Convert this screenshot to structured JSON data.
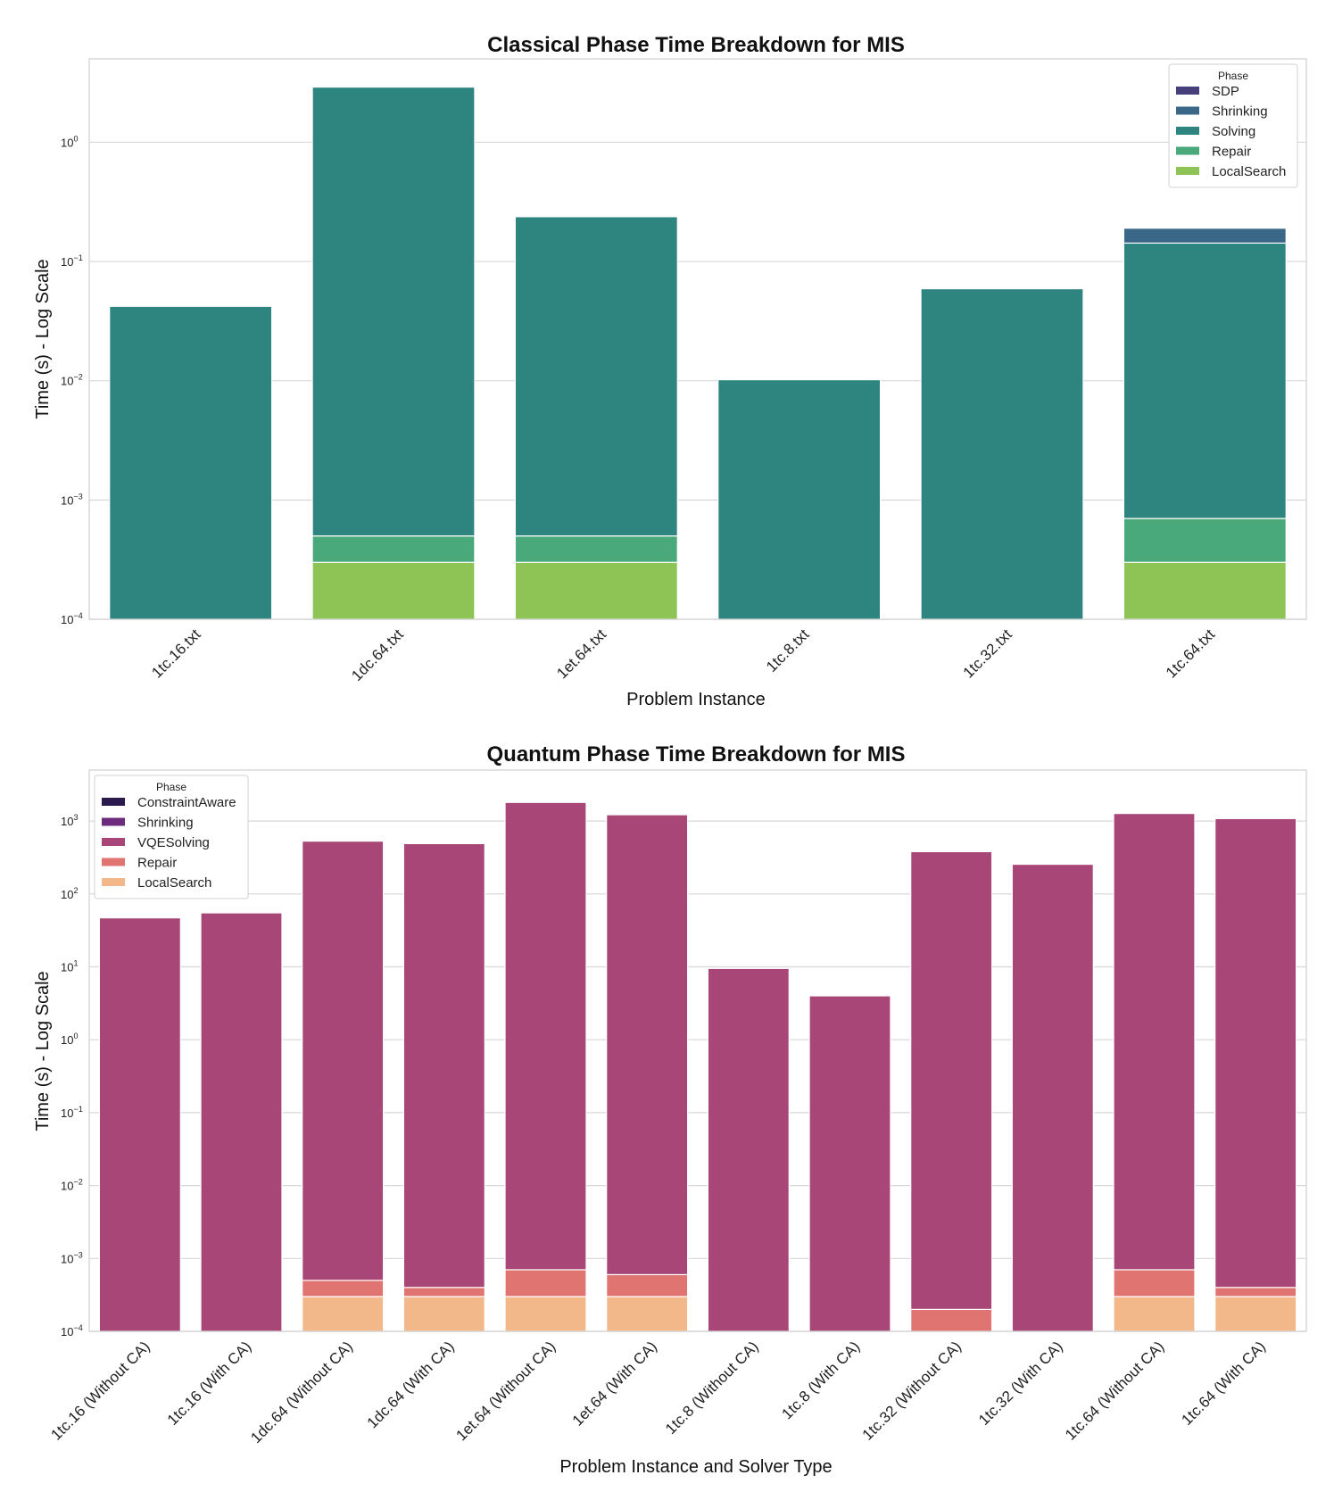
{
  "chart_data": [
    {
      "type": "bar",
      "stacked": true,
      "title": "Classical Phase Time Breakdown for MIS",
      "xlabel": "Problem Instance",
      "ylabel": "Time (s) - Log Scale",
      "yscale": "log",
      "ylim": [
        0.0001,
        5
      ],
      "y_ticks": [
        {
          "base": "10",
          "exp": "−4",
          "value": 0.0001
        },
        {
          "base": "10",
          "exp": "−3",
          "value": 0.001
        },
        {
          "base": "10",
          "exp": "−2",
          "value": 0.01
        },
        {
          "base": "10",
          "exp": "−1",
          "value": 0.1
        },
        {
          "base": "10",
          "exp": "0",
          "value": 1
        }
      ],
      "legend": {
        "title": "Phase",
        "position": "top-right"
      },
      "categories": [
        "1tc.16.txt",
        "1dc.64.txt",
        "1et.64.txt",
        "1tc.8.txt",
        "1tc.32.txt",
        "1tc.64.txt"
      ],
      "series": [
        {
          "name": "SDP",
          "color": "#453f7a",
          "values": [
            0,
            0,
            0,
            0,
            0,
            0
          ]
        },
        {
          "name": "Shrinking",
          "color": "#3a6788",
          "values": [
            0,
            0,
            0,
            0,
            0,
            0.0475
          ]
        },
        {
          "name": "Solving",
          "color": "#2e8580",
          "values": [
            0.042,
            2.9,
            0.237,
            0.0101,
            0.059,
            0.142
          ]
        },
        {
          "name": "Repair",
          "color": "#4aa97a",
          "values": [
            0,
            0.0002,
            0.0002,
            0,
            0,
            0.0004
          ]
        },
        {
          "name": "LocalSearch",
          "color": "#8ec455",
          "values": [
            0,
            0.0002,
            0.0002,
            0,
            0,
            0.0002
          ]
        }
      ]
    },
    {
      "type": "bar",
      "stacked": true,
      "title": "Quantum Phase Time Breakdown for MIS",
      "xlabel": "Problem Instance and Solver Type",
      "ylabel": "Time (s) - Log Scale",
      "yscale": "log",
      "ylim": [
        0.0001,
        5000
      ],
      "y_ticks": [
        {
          "base": "10",
          "exp": "−4",
          "value": 0.0001
        },
        {
          "base": "10",
          "exp": "−3",
          "value": 0.001
        },
        {
          "base": "10",
          "exp": "−2",
          "value": 0.01
        },
        {
          "base": "10",
          "exp": "−1",
          "value": 0.1
        },
        {
          "base": "10",
          "exp": "0",
          "value": 1
        },
        {
          "base": "10",
          "exp": "1",
          "value": 10
        },
        {
          "base": "10",
          "exp": "2",
          "value": 100
        },
        {
          "base": "10",
          "exp": "3",
          "value": 1000
        }
      ],
      "legend": {
        "title": "Phase",
        "position": "top-left"
      },
      "categories": [
        "1tc.16 (Without CA)",
        "1tc.16 (With CA)",
        "1dc.64 (Without CA)",
        "1dc.64 (With CA)",
        "1et.64 (Without CA)",
        "1et.64 (With CA)",
        "1tc.8 (Without CA)",
        "1tc.8 (With CA)",
        "1tc.32 (Without CA)",
        "1tc.32 (With CA)",
        "1tc.64 (Without CA)",
        "1tc.64 (With CA)"
      ],
      "series": [
        {
          "name": "ConstraintAware",
          "color": "#2a1a4e",
          "values": [
            0,
            0,
            0,
            0,
            0,
            0,
            0,
            0,
            0,
            0,
            0,
            0
          ]
        },
        {
          "name": "Shrinking",
          "color": "#6d2b7e",
          "values": [
            0,
            0,
            0,
            0,
            0,
            0,
            0,
            0,
            0,
            0,
            0,
            0
          ]
        },
        {
          "name": "VQESolving",
          "color": "#a84677",
          "values": [
            47,
            55,
            530,
            490,
            1800,
            1220,
            9.5,
            4.0,
            380,
            255,
            1270,
            1080
          ]
        },
        {
          "name": "Repair",
          "color": "#e07470",
          "values": [
            0,
            0,
            0.0002,
            0.0001,
            0.0004,
            0.0003,
            0,
            0,
            0.0001,
            0,
            0.0004,
            0.0001
          ]
        },
        {
          "name": "LocalSearch",
          "color": "#f2b88a",
          "values": [
            0,
            0,
            0.0002,
            0.0002,
            0.0002,
            0.0002,
            0,
            0,
            0,
            0,
            0.0002,
            0.0002
          ]
        }
      ]
    }
  ]
}
